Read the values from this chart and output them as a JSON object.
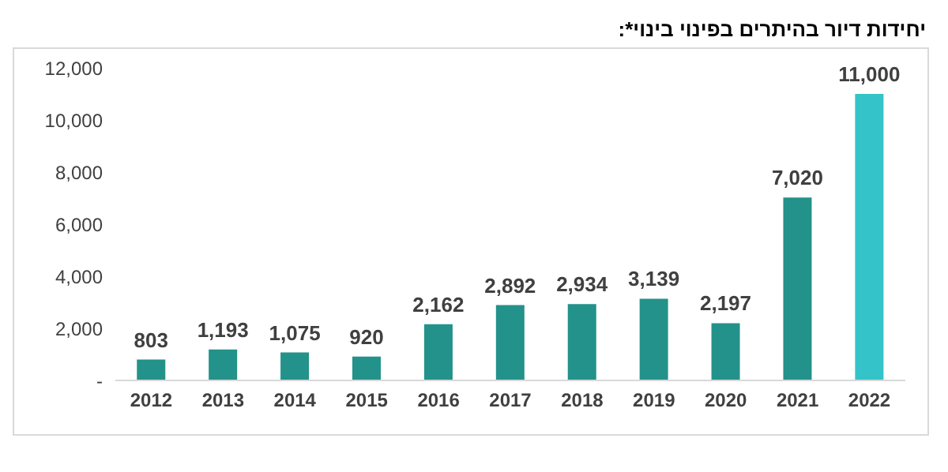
{
  "chart_data": {
    "type": "bar",
    "title": "יחידות דיור בהיתרים בפינוי בינוי*:",
    "categories": [
      "2012",
      "2013",
      "2014",
      "2015",
      "2016",
      "2017",
      "2018",
      "2019",
      "2020",
      "2021",
      "2022"
    ],
    "values": [
      803,
      1193,
      1075,
      920,
      2162,
      2892,
      2934,
      3139,
      2197,
      7020,
      11000
    ],
    "colors": [
      "#23928a",
      "#23928a",
      "#23928a",
      "#23928a",
      "#23928a",
      "#23928a",
      "#23928a",
      "#23928a",
      "#23928a",
      "#23928a",
      "#33c3c9"
    ],
    "ylim": [
      0,
      12000
    ],
    "yticks": [
      {
        "value": 0,
        "label": "-"
      },
      {
        "value": 2000,
        "label": "2,000"
      },
      {
        "value": 4000,
        "label": "4,000"
      },
      {
        "value": 6000,
        "label": "6,000"
      },
      {
        "value": 8000,
        "label": "8,000"
      },
      {
        "value": 10000,
        "label": "10,000"
      },
      {
        "value": 12000,
        "label": "12,000"
      }
    ],
    "value_labels": [
      "803",
      "1,193",
      "1,075",
      "920",
      "2,162",
      "2,892",
      "2,934",
      "3,139",
      "2,197",
      "7,020",
      "11,000"
    ],
    "grid": false
  }
}
